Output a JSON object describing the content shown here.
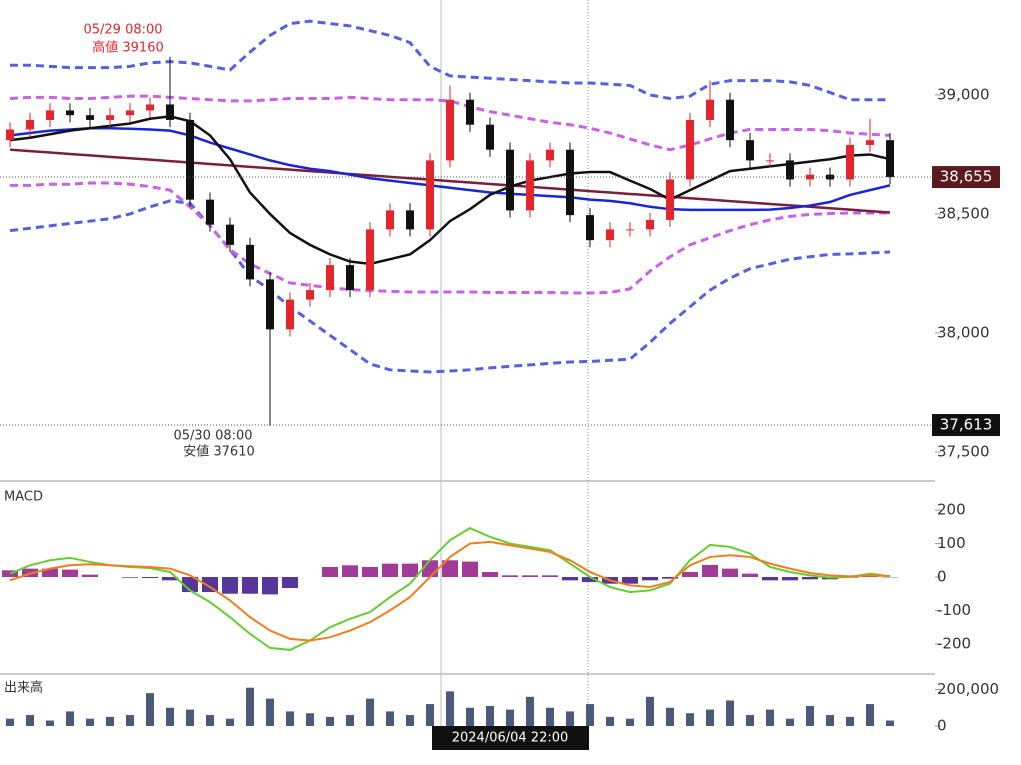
{
  "chart_data": {
    "type": "candlestick",
    "up_color": "#e3262c",
    "down_color": "#111111",
    "candles": {
      "open": [
        38810,
        38855,
        38895,
        38935,
        38915,
        38895,
        38915,
        38935,
        38960,
        38895,
        38560,
        38455,
        38370,
        38225,
        38015,
        38140,
        38180,
        38285,
        38180,
        38435,
        38515,
        38435,
        38725,
        38980,
        38875,
        38770,
        38515,
        38725,
        38770,
        38495,
        38390,
        38435,
        38435,
        38475,
        38645,
        38895,
        38980,
        38810,
        38725,
        38725,
        38645,
        38665,
        38645,
        38790,
        38810
      ],
      "high": [
        38885,
        38925,
        38965,
        38965,
        38945,
        38945,
        38965,
        38990,
        39160,
        38925,
        38590,
        38485,
        38400,
        38255,
        38170,
        38210,
        38315,
        38315,
        38465,
        38545,
        38545,
        38755,
        39040,
        39010,
        38905,
        38800,
        38755,
        38800,
        38800,
        38525,
        38465,
        38465,
        38505,
        38675,
        38925,
        39060,
        39010,
        38840,
        38755,
        38755,
        38695,
        38695,
        38820,
        38900,
        38840
      ],
      "low": [
        38780,
        38825,
        38865,
        38885,
        38865,
        38865,
        38885,
        38905,
        38865,
        38530,
        38425,
        38340,
        38195,
        37610,
        37985,
        38110,
        38150,
        38150,
        38150,
        38405,
        38405,
        38405,
        38695,
        38845,
        38740,
        38485,
        38485,
        38695,
        38465,
        38360,
        38360,
        38405,
        38405,
        38445,
        38615,
        38865,
        38780,
        38695,
        38695,
        38615,
        38615,
        38615,
        38615,
        38760,
        38625
      ],
      "close": [
        38855,
        38895,
        38935,
        38915,
        38895,
        38915,
        38935,
        38960,
        38895,
        38560,
        38455,
        38370,
        38225,
        38015,
        38140,
        38180,
        38285,
        38180,
        38435,
        38515,
        38435,
        38725,
        38980,
        38875,
        38770,
        38515,
        38725,
        38770,
        38495,
        38390,
        38435,
        38435,
        38475,
        38645,
        38895,
        38980,
        38810,
        38725,
        38725,
        38645,
        38665,
        38645,
        38790,
        38810,
        38655
      ]
    },
    "lines": [
      {
        "color": "#5560e0",
        "dash": true,
        "values": [
          39125,
          39125,
          39120,
          39115,
          39115,
          39115,
          39120,
          39135,
          39140,
          39135,
          39120,
          39105,
          39180,
          39250,
          39300,
          39310,
          39300,
          39290,
          39270,
          39250,
          39220,
          39120,
          39080,
          39075,
          39070,
          39065,
          39060,
          39055,
          39050,
          39050,
          39045,
          39040,
          39000,
          38985,
          38995,
          39045,
          39060,
          39060,
          39060,
          39055,
          39040,
          39010,
          38980,
          38980,
          38980
        ]
      },
      {
        "color": "#5560e0",
        "dash": true,
        "values": [
          38430,
          38440,
          38450,
          38460,
          38470,
          38480,
          38500,
          38530,
          38555,
          38545,
          38450,
          38350,
          38240,
          38180,
          38110,
          38050,
          37990,
          37930,
          37870,
          37845,
          37840,
          37836,
          37840,
          37845,
          37853,
          37860,
          37866,
          37872,
          37878,
          37880,
          37885,
          37890,
          37960,
          38040,
          38110,
          38180,
          38230,
          38270,
          38290,
          38310,
          38320,
          38330,
          38332,
          38336,
          38340
        ]
      },
      {
        "color": "#c860e8",
        "dash": true,
        "values": [
          38985,
          38990,
          38990,
          38985,
          38985,
          38990,
          38995,
          38995,
          38990,
          38985,
          38980,
          38975,
          38975,
          38980,
          38985,
          38985,
          38985,
          38990,
          38985,
          38980,
          38980,
          38980,
          38975,
          38950,
          38930,
          38915,
          38900,
          38885,
          38875,
          38860,
          38840,
          38815,
          38790,
          38770,
          38790,
          38815,
          38840,
          38855,
          38855,
          38855,
          38855,
          38850,
          38840,
          38835,
          38830
        ]
      },
      {
        "color": "#c860e8",
        "dash": true,
        "values": [
          38620,
          38620,
          38625,
          38625,
          38630,
          38630,
          38625,
          38615,
          38600,
          38530,
          38450,
          38350,
          38290,
          38250,
          38210,
          38200,
          38190,
          38182,
          38178,
          38175,
          38172,
          38172,
          38172,
          38172,
          38170,
          38170,
          38170,
          38170,
          38168,
          38168,
          38170,
          38185,
          38260,
          38320,
          38370,
          38400,
          38430,
          38455,
          38475,
          38490,
          38498,
          38502,
          38504,
          38504,
          38504
        ]
      },
      {
        "color": "#7a1f3a",
        "dash": false,
        "values": [
          38770,
          38764,
          38758,
          38752,
          38746,
          38740,
          38734,
          38728,
          38722,
          38716,
          38710,
          38704,
          38698,
          38692,
          38686,
          38680,
          38674,
          38668,
          38662,
          38656,
          38650,
          38644,
          38638,
          38632,
          38626,
          38620,
          38614,
          38608,
          38602,
          38596,
          38590,
          38584,
          38578,
          38572,
          38566,
          38560,
          38554,
          38548,
          38542,
          38536,
          38530,
          38524,
          38518,
          38512,
          38506
        ]
      },
      {
        "color": "#1a24d8",
        "dash": false,
        "values": [
          38830,
          38840,
          38850,
          38855,
          38860,
          38860,
          38858,
          38855,
          38850,
          38830,
          38800,
          38775,
          38750,
          38725,
          38705,
          38690,
          38680,
          38665,
          38650,
          38640,
          38630,
          38620,
          38610,
          38600,
          38590,
          38585,
          38580,
          38575,
          38570,
          38560,
          38555,
          38545,
          38530,
          38520,
          38517,
          38517,
          38517,
          38517,
          38518,
          38525,
          38535,
          38550,
          38580,
          38600,
          38620
        ]
      },
      {
        "color": "#111111",
        "dash": false,
        "values": [
          38810,
          38820,
          38835,
          38850,
          38860,
          38870,
          38880,
          38900,
          38910,
          38890,
          38830,
          38730,
          38590,
          38500,
          38420,
          38370,
          38330,
          38300,
          38290,
          38310,
          38330,
          38390,
          38470,
          38520,
          38580,
          38615,
          38640,
          38655,
          38670,
          38676,
          38676,
          38640,
          38605,
          38560,
          38600,
          38640,
          38680,
          38690,
          38700,
          38710,
          38720,
          38730,
          38745,
          38750,
          38730
        ]
      }
    ],
    "ylim": [
      37382,
      39399
    ],
    "yticks": [
      {
        "value": 37500,
        "label": "37,500"
      },
      {
        "value": 38000,
        "label": "38,000"
      },
      {
        "value": 38500,
        "label": "38,500"
      },
      {
        "value": 39000,
        "label": "39,000"
      }
    ],
    "high_note": {
      "time": "05/29 08:00",
      "text": "高値 39160"
    },
    "low_note": {
      "time": "05/30 08:00",
      "text": "安値 37610"
    },
    "last_price": {
      "value": 38655,
      "label": "38,655"
    },
    "cursor_price": {
      "value": 37613,
      "label": "37,613"
    },
    "cursor_time": "2024/06/04 22:00",
    "macd": {
      "title": "MACD",
      "ylim": [
        -284,
        284
      ],
      "yticks": [
        -200,
        -100,
        0,
        100,
        200
      ],
      "pos_color": "#a03c98",
      "neg_color": "#56369a",
      "histogram": [
        20,
        25,
        25,
        22,
        7,
        0,
        -2,
        -3,
        -10,
        -45,
        -45,
        -50,
        -50,
        -52,
        -33,
        0,
        30,
        35,
        30,
        40,
        40,
        50,
        50,
        46,
        15,
        5,
        5,
        5,
        -10,
        -15,
        -20,
        -20,
        -10,
        -5,
        15,
        36,
        25,
        10,
        -10,
        -10,
        -7,
        -7,
        -2,
        5,
        -1
      ],
      "series": [
        {
          "color": "#66cc33",
          "values": [
            10,
            35,
            50,
            57,
            45,
            35,
            30,
            27,
            15,
            -40,
            -75,
            -120,
            -170,
            -212,
            -218,
            -190,
            -150,
            -125,
            -105,
            -60,
            -20,
            50,
            110,
            146,
            120,
            100,
            90,
            80,
            40,
            0,
            -30,
            -45,
            -40,
            -20,
            50,
            96,
            90,
            70,
            30,
            15,
            5,
            -2,
            0,
            10,
            2
          ]
        },
        {
          "color": "#f07d1e",
          "values": [
            -10,
            10,
            25,
            35,
            38,
            35,
            32,
            30,
            25,
            5,
            -30,
            -70,
            -120,
            -160,
            -185,
            -190,
            -180,
            -160,
            -135,
            -100,
            -60,
            0,
            60,
            100,
            105,
            95,
            85,
            75,
            50,
            15,
            -10,
            -25,
            -30,
            -15,
            35,
            60,
            65,
            60,
            40,
            25,
            12,
            5,
            2,
            5,
            3
          ]
        }
      ]
    },
    "volume": {
      "title": "出来高",
      "color": "#4a5a78",
      "ylim": [
        0,
        274000
      ],
      "yticks": [
        0,
        {
          "value": 200000,
          "label": "200,000"
        }
      ],
      "values": [
        40000,
        60000,
        30000,
        80000,
        40000,
        50000,
        60000,
        180000,
        100000,
        90000,
        60000,
        40000,
        210000,
        150000,
        80000,
        70000,
        50000,
        60000,
        150000,
        80000,
        60000,
        120000,
        190000,
        100000,
        110000,
        90000,
        160000,
        100000,
        80000,
        120000,
        50000,
        40000,
        160000,
        100000,
        70000,
        90000,
        140000,
        60000,
        90000,
        40000,
        110000,
        60000,
        50000,
        120000,
        30000
      ]
    }
  }
}
